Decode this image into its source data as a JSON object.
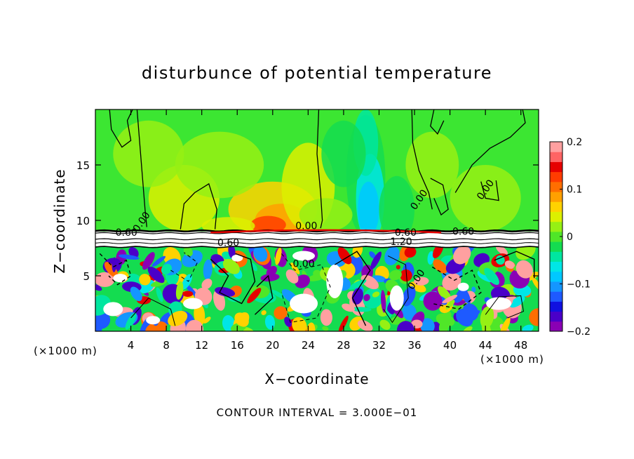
{
  "chart_data": {
    "type": "heatmap",
    "title": "disturbunce of potential temperature",
    "xlabel": "X−coordinate",
    "ylabel": "Z−coordinate",
    "x_unit": "(×1000 m)",
    "x_unit_right": "(×1000 m)",
    "footer": "CONTOUR INTERVAL = 3.000E−01",
    "xlim": [
      0,
      50
    ],
    "ylim": [
      0,
      20
    ],
    "x_ticks": [
      4,
      8,
      12,
      16,
      20,
      24,
      28,
      32,
      36,
      40,
      44,
      48
    ],
    "y_ticks": [
      5,
      10,
      15
    ],
    "colorbar": {
      "range": [
        -0.2,
        0.2
      ],
      "tick_values": [
        0.2,
        0.1,
        0,
        -0.1,
        -0.2
      ],
      "tick_labels": [
        "0.2",
        "0.1",
        "0",
        "−0.1",
        "−0.2"
      ],
      "colors": [
        "#8a00b4",
        "#4a00c8",
        "#1010e0",
        "#1e5aff",
        "#1496ff",
        "#00c8ff",
        "#00e6e6",
        "#00e6a0",
        "#14dc50",
        "#50e628",
        "#96f014",
        "#dcf000",
        "#ffd200",
        "#ffa000",
        "#ff6e00",
        "#ff3c00",
        "#e60000",
        "#ff6464",
        "#ffa0a0"
      ]
    },
    "inversion_layer": {
      "z_bottom": 7.5,
      "z_top": 9.0
    },
    "contour_labels": [
      {
        "text": "0.60",
        "x": 3.5,
        "z": 8.6
      },
      {
        "text": "0.00",
        "x": 5.5,
        "z": 9.7
      },
      {
        "text": "0.60",
        "x": 15.0,
        "z": 7.7
      },
      {
        "text": "0.00",
        "x": 23.5,
        "z": 5.8
      },
      {
        "text": "0.00",
        "x": 23.8,
        "z": 9.2
      },
      {
        "text": "0.60",
        "x": 35.0,
        "z": 8.6
      },
      {
        "text": "1.20",
        "x": 34.5,
        "z": 7.8
      },
      {
        "text": "0.00",
        "x": 36.5,
        "z": 4.5
      },
      {
        "text": "0.00",
        "x": 36.8,
        "z": 11.7
      },
      {
        "text": "0.60",
        "x": 41.5,
        "z": 8.7
      },
      {
        "text": "0.00",
        "x": 44.3,
        "z": 12.6
      }
    ]
  }
}
